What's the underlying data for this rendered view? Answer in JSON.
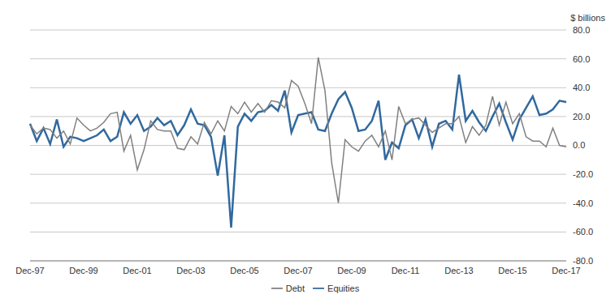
{
  "chart_data": {
    "type": "line",
    "ylabel": "$ billions",
    "categories": [
      "Dec-97",
      null,
      null,
      null,
      null,
      null,
      null,
      null,
      "Dec-99",
      null,
      null,
      null,
      null,
      null,
      null,
      null,
      "Dec-01",
      null,
      null,
      null,
      null,
      null,
      null,
      null,
      "Dec-03",
      null,
      null,
      null,
      null,
      null,
      null,
      null,
      "Dec-05",
      null,
      null,
      null,
      null,
      null,
      null,
      null,
      "Dec-07",
      null,
      null,
      null,
      null,
      null,
      null,
      null,
      "Dec-09",
      null,
      null,
      null,
      null,
      null,
      null,
      null,
      "Dec-11",
      null,
      null,
      null,
      null,
      null,
      null,
      null,
      "Dec-13",
      null,
      null,
      null,
      null,
      null,
      null,
      null,
      "Dec-15",
      null,
      null,
      null,
      null,
      null,
      null,
      null,
      "Dec-17"
    ],
    "series": [
      {
        "name": "Equities",
        "color": "#31699e",
        "values": [
          15,
          3,
          12,
          1,
          18,
          -1,
          6,
          5,
          3,
          5,
          7,
          11,
          3,
          6,
          23,
          15,
          21,
          10,
          13,
          19,
          14,
          17,
          7,
          14,
          25,
          15,
          14,
          6,
          -21,
          7,
          -57,
          13,
          22,
          17,
          23,
          24,
          28,
          24,
          38,
          9,
          21,
          22,
          23,
          11,
          10,
          22,
          32,
          37,
          26,
          10,
          11,
          17,
          31,
          -10,
          2,
          -2,
          14,
          18,
          5,
          18,
          -1,
          15,
          17,
          11,
          49,
          17,
          24,
          16,
          10,
          20,
          29,
          16,
          4,
          18,
          26,
          34,
          21,
          22,
          25,
          31,
          30
        ]
      },
      {
        "name": "Debt",
        "color": "#808080",
        "values": [
          14,
          8,
          12,
          11,
          5,
          10,
          1,
          19,
          14,
          10,
          12,
          16,
          22,
          23,
          -4,
          7,
          -17,
          -3,
          17,
          11,
          10,
          10,
          -2,
          -3,
          6,
          1,
          16,
          8,
          17,
          10,
          27,
          22,
          30,
          23,
          29,
          23,
          31,
          30,
          26,
          45,
          41,
          29,
          15,
          61,
          38,
          -12,
          -40,
          4,
          -1,
          -4,
          3,
          7,
          -1,
          10,
          -10,
          27,
          15,
          18,
          19,
          14,
          9,
          12,
          15,
          15,
          20,
          2,
          13,
          7,
          14,
          34,
          14,
          30,
          15,
          22,
          6,
          3,
          3,
          -1,
          12,
          0,
          -1
        ]
      }
    ],
    "ylim": [
      -80,
      80
    ],
    "yticks": [
      {
        "value": -80,
        "label": "-80.0"
      },
      {
        "value": -60,
        "label": "-60.0"
      },
      {
        "value": -40,
        "label": "-40.0"
      },
      {
        "value": -20,
        "label": "-20.0"
      },
      {
        "value": 0,
        "label": "0.0"
      },
      {
        "value": 20,
        "label": "20.0"
      },
      {
        "value": 40,
        "label": "40.0"
      },
      {
        "value": 60,
        "label": "60.0"
      },
      {
        "value": 80,
        "label": "80.0"
      }
    ],
    "grid": true,
    "legend": "bottom"
  }
}
